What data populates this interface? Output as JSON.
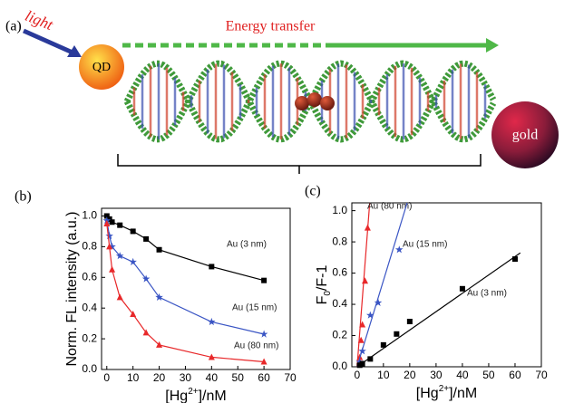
{
  "diagram": {
    "label": "(a)",
    "light": "light",
    "qd": "QD",
    "energy": "Energy transfer",
    "gold": "gold"
  },
  "chart_data": [
    {
      "type": "line",
      "panel": "(b)",
      "ylabel": "Norm. FL intensity (a.u.)",
      "xlabel": [
        "[Hg",
        "2+",
        "]/nM"
      ],
      "xlim": [
        -2,
        70
      ],
      "ylim": [
        0,
        1.05
      ],
      "xticks": [
        0,
        10,
        20,
        30,
        40,
        50,
        60,
        70
      ],
      "yticks": [
        {
          "value": 0,
          "label": "0.0"
        },
        0.2,
        0.4,
        0.6,
        0.8,
        {
          "value": 1,
          "label": "1.0"
        }
      ],
      "series": [
        {
          "name": "Au (3 nm)",
          "color": "#000000",
          "marker": "square",
          "x": [
            0,
            1,
            2,
            5,
            10,
            15,
            20,
            40,
            60
          ],
          "values": [
            1.0,
            0.98,
            0.96,
            0.94,
            0.9,
            0.85,
            0.78,
            0.67,
            0.58
          ]
        },
        {
          "name": "Au (15 nm)",
          "color": "#3a55c4",
          "marker": "star",
          "x": [
            0,
            1,
            2,
            5,
            10,
            15,
            20,
            40,
            60
          ],
          "values": [
            0.97,
            0.87,
            0.8,
            0.74,
            0.7,
            0.59,
            0.47,
            0.31,
            0.23
          ]
        },
        {
          "name": "Au (80 nm)",
          "color": "#e8282a",
          "marker": "triangle",
          "x": [
            0,
            1,
            2,
            5,
            10,
            15,
            20,
            40,
            60
          ],
          "values": [
            0.95,
            0.8,
            0.65,
            0.47,
            0.36,
            0.24,
            0.16,
            0.08,
            0.05
          ]
        }
      ]
    },
    {
      "type": "scatter",
      "panel": "(c)",
      "ylabel": [
        "F",
        "0",
        "/F-1"
      ],
      "xlabel": [
        "[Hg",
        "2+",
        "]/nM"
      ],
      "xlim": [
        -2,
        70
      ],
      "ylim": [
        0,
        1.05
      ],
      "xticks": [
        0,
        10,
        20,
        30,
        40,
        50,
        60,
        70
      ],
      "yticks": [
        {
          "value": 0,
          "label": "0.0"
        },
        0.2,
        0.4,
        0.6,
        0.8,
        {
          "value": 1,
          "label": "1.0"
        }
      ],
      "series": [
        {
          "name": "Au (80 nm)",
          "color": "#e8282a",
          "marker": "triangle",
          "x": [
            1,
            1.5,
            2,
            3,
            4
          ],
          "values": [
            0.06,
            0.17,
            0.27,
            0.55,
            0.89
          ],
          "fit_x": [
            0,
            4.8
          ],
          "fit_values": [
            0,
            1.05
          ]
        },
        {
          "name": "Au (15 nm)",
          "color": "#3a55c4",
          "marker": "star",
          "x": [
            1,
            2,
            5,
            8,
            16
          ],
          "values": [
            0.03,
            0.1,
            0.33,
            0.41,
            0.75
          ],
          "fit_x": [
            0,
            19
          ],
          "fit_values": [
            0,
            1.05
          ]
        },
        {
          "name": "Au (3 nm)",
          "color": "#000000",
          "marker": "square",
          "x": [
            1,
            2,
            5,
            10,
            15,
            20,
            40,
            60
          ],
          "values": [
            0.01,
            0.02,
            0.05,
            0.14,
            0.21,
            0.29,
            0.5,
            0.69
          ],
          "fit_x": [
            0,
            62
          ],
          "fit_values": [
            0,
            0.73
          ]
        }
      ]
    }
  ]
}
